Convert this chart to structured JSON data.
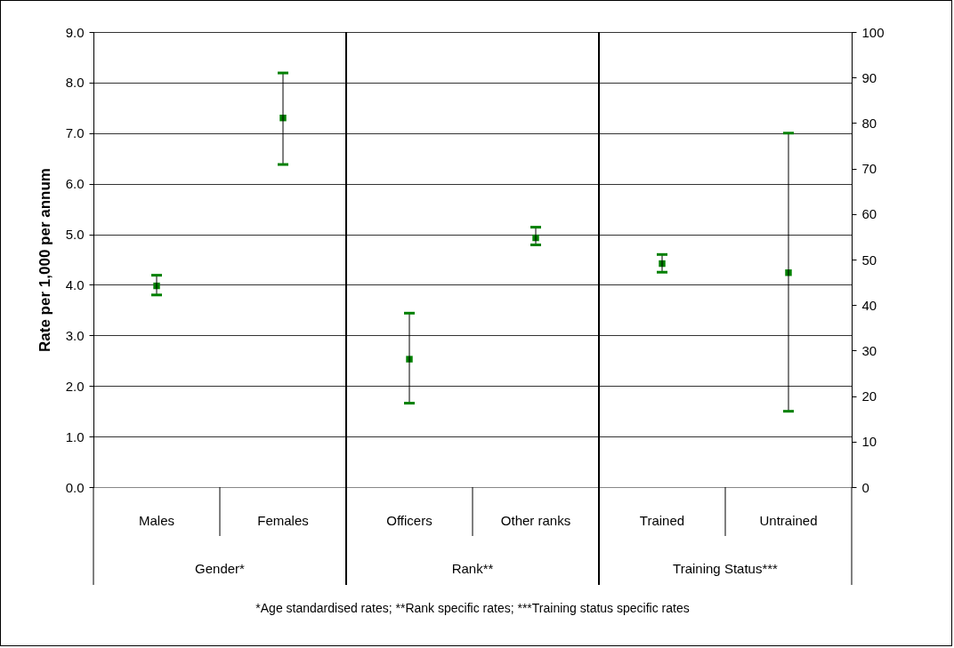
{
  "chart_data": {
    "type": "scatter",
    "ylabel": "Rate per 1,000 per annum",
    "categories": [
      "Males",
      "Females",
      "Officers",
      "Other ranks",
      "Trained",
      "Untrained"
    ],
    "series": [
      {
        "color": "#008000",
        "values": [
          3.98,
          7.3,
          2.53,
          4.93,
          4.42,
          4.24
        ],
        "errors": [
          [
            3.8,
            4.19
          ],
          [
            6.38,
            8.19
          ],
          [
            1.66,
            3.44
          ],
          [
            4.79,
            5.14
          ],
          [
            4.25,
            4.6
          ],
          [
            1.5,
            7.0
          ]
        ]
      }
    ],
    "ylim": [
      0,
      9
    ],
    "yticks": [
      {
        "value": 0,
        "label": "0.0"
      },
      {
        "value": 1,
        "label": "1.0"
      },
      {
        "value": 2,
        "label": "2.0"
      },
      {
        "value": 3,
        "label": "3.0"
      },
      {
        "value": 4,
        "label": "4.0"
      },
      {
        "value": 5,
        "label": "5.0"
      },
      {
        "value": 6,
        "label": "6.0"
      },
      {
        "value": 7,
        "label": "7.0"
      },
      {
        "value": 8,
        "label": "8.0"
      },
      {
        "value": 9,
        "label": "9.0"
      }
    ],
    "y2lim": [
      0,
      100
    ],
    "y2ticks": [
      0,
      10,
      20,
      30,
      40,
      50,
      60,
      70,
      80,
      90,
      100
    ],
    "grid": "y",
    "marker": "square",
    "annotations": [
      "Gender*",
      "Rank**",
      "Training Status***",
      "*Age standardised rates; **Rank specific rates; ***Training status specific rates"
    ]
  }
}
